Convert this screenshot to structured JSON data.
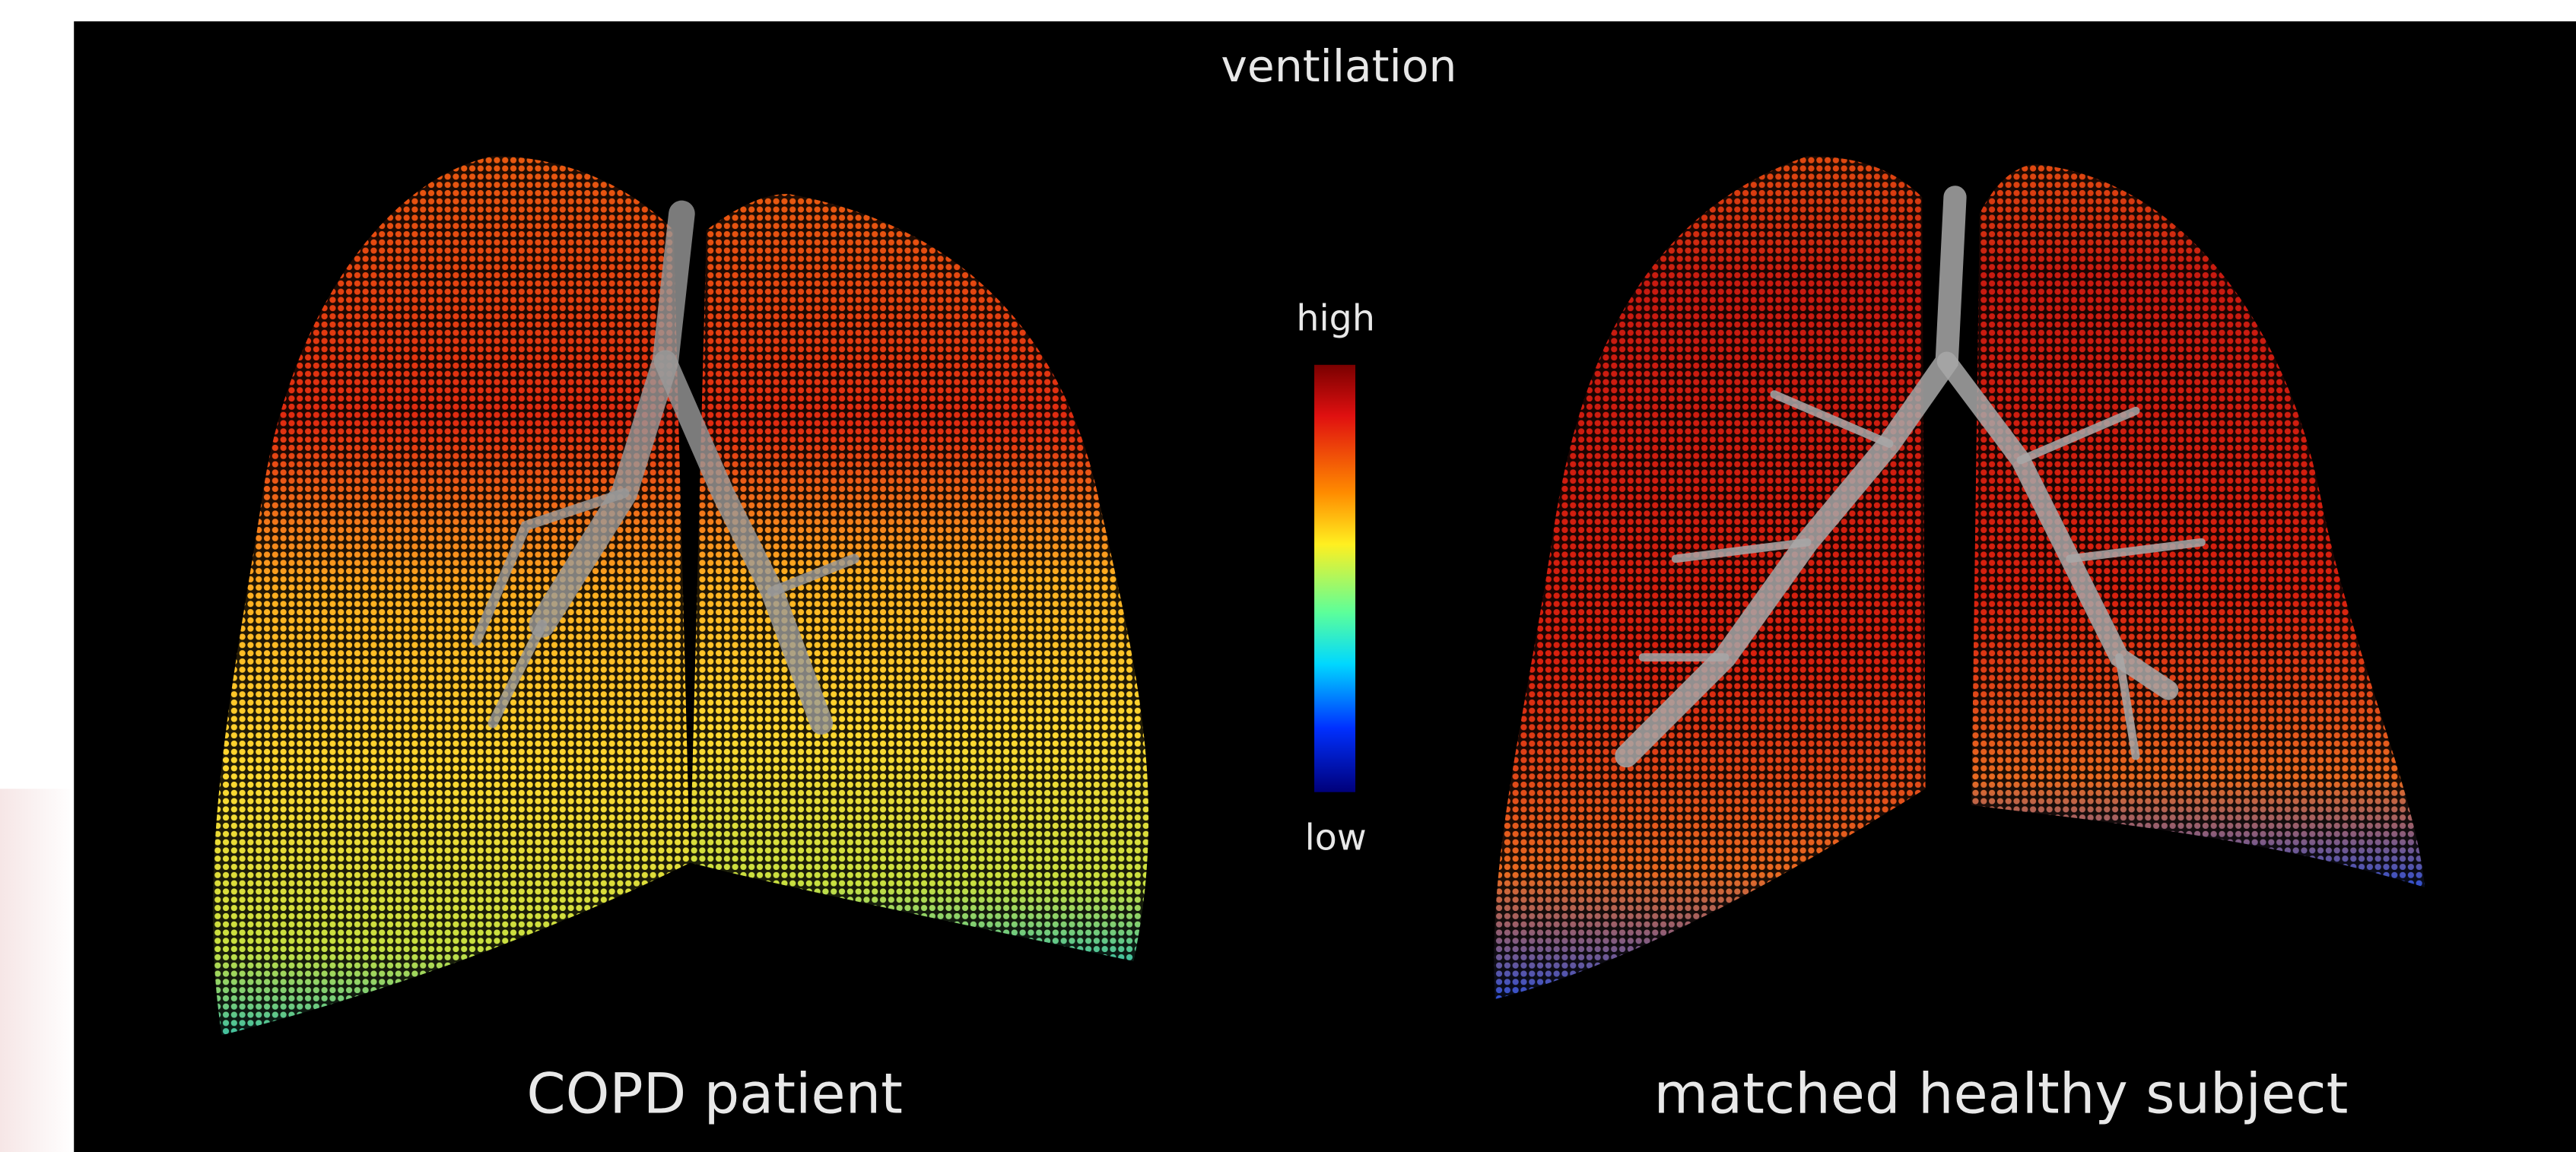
{
  "title": "ventilation",
  "colorbar": {
    "high": "high",
    "low": "low"
  },
  "panels": [
    {
      "label": "COPD patient"
    },
    {
      "label": "matched healthy subject"
    }
  ]
}
